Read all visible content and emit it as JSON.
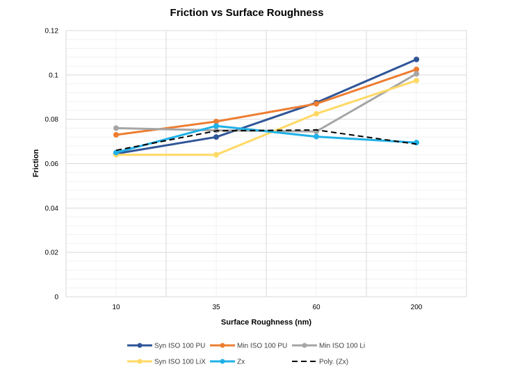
{
  "chart_data": {
    "type": "line",
    "title": "Friction vs Surface Roughness",
    "xlabel": "Surface Roughness (nm)",
    "ylabel": "Friction",
    "categories": [
      "10",
      "35",
      "60",
      "200"
    ],
    "ylim": [
      0,
      0.12
    ],
    "yticks": [
      "0",
      "0.02",
      "0.04",
      "0.06",
      "0.08",
      "0.1",
      "0.12"
    ],
    "grid": true,
    "legend_position": "bottom",
    "series": [
      {
        "name": "Syn ISO 100 PU",
        "color": "#2f5597",
        "values": [
          0.0645,
          0.072,
          0.0875,
          0.107
        ],
        "marker": true,
        "dashed": false
      },
      {
        "name": "Min ISO 100 PU",
        "color": "#ed7d31",
        "values": [
          0.073,
          0.079,
          0.087,
          0.1025
        ],
        "marker": true,
        "dashed": false
      },
      {
        "name": "Min ISO 100 Li",
        "color": "#a5a5a5",
        "values": [
          0.076,
          0.075,
          0.0745,
          0.1005
        ],
        "marker": true,
        "dashed": false
      },
      {
        "name": "Syn ISO 100 LiX",
        "color": "#ffd966",
        "values": [
          0.064,
          0.064,
          0.0825,
          0.0975
        ],
        "marker": true,
        "dashed": false
      },
      {
        "name": "Zx",
        "color": "#1fb1e6",
        "values": [
          0.065,
          0.077,
          0.0722,
          0.0695
        ],
        "marker": true,
        "dashed": false
      },
      {
        "name": "Poly. (Zx)",
        "color": "#000000",
        "values": [
          0.066,
          0.0748,
          0.0752,
          0.0688
        ],
        "marker": false,
        "dashed": true
      }
    ]
  }
}
